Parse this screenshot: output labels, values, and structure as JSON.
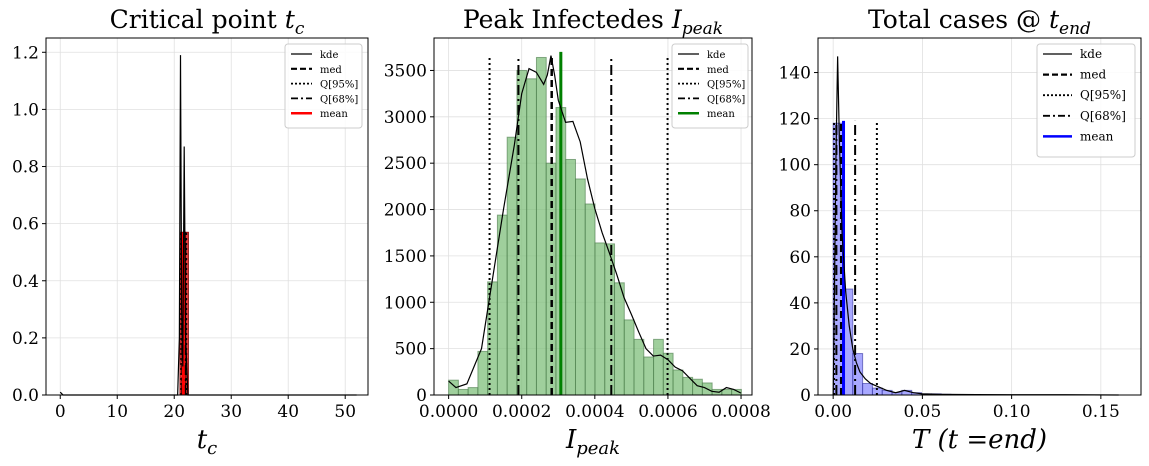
{
  "chart_data": [
    {
      "type": "histogram",
      "title": "Critical point t_c",
      "title_text": "Critical point ",
      "title_math": "t",
      "title_sub": "c",
      "xlabel": "t",
      "xlabel_sub": "c",
      "xlim": [
        -2.5,
        54
      ],
      "ylim": [
        0,
        1.25
      ],
      "xticks": [
        0,
        10,
        20,
        30,
        40,
        50
      ],
      "xtick_labels": [
        "0",
        "10",
        "20",
        "30",
        "40",
        "50"
      ],
      "yticks": [
        0,
        0.2,
        0.4,
        0.6,
        0.8,
        1.0,
        1.2
      ],
      "ytick_labels": [
        "0.0",
        "0.2",
        "0.4",
        "0.6",
        "0.8",
        "1.0",
        "1.2"
      ],
      "grid": true,
      "hist_color": "#e31a1c",
      "hist_edge": "#8b0000",
      "bins": [
        {
          "x0": 21.0,
          "x1": 21.5,
          "y": 0.57
        },
        {
          "x0": 21.5,
          "x1": 22.0,
          "y": 0.57
        },
        {
          "x0": 22.0,
          "x1": 22.5,
          "y": 0.57
        }
      ],
      "kde": [
        [
          0,
          0.01
        ],
        [
          0.5,
          0.0
        ],
        [
          20.6,
          0.0
        ],
        [
          20.9,
          0.2
        ],
        [
          21.1,
          1.19
        ],
        [
          21.3,
          0.3
        ],
        [
          21.5,
          0.1
        ],
        [
          21.75,
          0.87
        ],
        [
          22.0,
          0.2
        ],
        [
          22.4,
          0.0
        ],
        [
          52,
          0.0
        ]
      ],
      "med": 21.5,
      "q95": [
        21.25,
        22.1
      ],
      "q68": [
        21.4,
        21.95
      ],
      "mean": 21.6,
      "vline_top": 0.57,
      "mean_color": "#ff0000",
      "legend": [
        "kde",
        "med",
        "Q[95%]",
        "Q[68%]",
        "mean"
      ],
      "legend_position": "top-right"
    },
    {
      "type": "histogram",
      "title": "Peak Infectedes I_peak",
      "title_text": "Peak Infectedes ",
      "title_math": "I",
      "title_sub": "peak",
      "xlabel": "I",
      "xlabel_sub": "peak",
      "xlim": [
        -4e-05,
        0.00083
      ],
      "ylim": [
        0,
        3850
      ],
      "xticks": [
        0,
        0.0002,
        0.0004,
        0.0006,
        0.0008
      ],
      "xtick_labels": [
        "0.0000",
        "0.0002",
        "0.0004",
        "0.0006",
        "0.0008"
      ],
      "yticks": [
        0,
        500,
        1000,
        1500,
        2000,
        2500,
        3000,
        3500
      ],
      "ytick_labels": [
        "0",
        "500",
        "1000",
        "1500",
        "2000",
        "2500",
        "3000",
        "3500"
      ],
      "grid": true,
      "hist_color": "#7fbf7b",
      "hist_edge": "#4a7a4a",
      "bin_start": 0.0,
      "bin_width": 2.67e-05,
      "bin_values": [
        160,
        60,
        80,
        470,
        1220,
        1940,
        2780,
        3500,
        3410,
        3640,
        2500,
        3100,
        2540,
        2330,
        2060,
        1640,
        1630,
        1210,
        810,
        600,
        410,
        600,
        450,
        270,
        190,
        170,
        130,
        60,
        60,
        60
      ],
      "kde": [
        [
          0.0,
          150
        ],
        [
          2e-05,
          80
        ],
        [
          5e-05,
          120
        ],
        [
          9e-05,
          500
        ],
        [
          0.00012,
          1250
        ],
        [
          0.00015,
          2000
        ],
        [
          0.00018,
          2700
        ],
        [
          0.0002,
          3250
        ],
        [
          0.00022,
          3520
        ],
        [
          0.00024,
          3480
        ],
        [
          0.00026,
          3350
        ],
        [
          0.00027,
          3450
        ],
        [
          0.00028,
          3660
        ],
        [
          0.00029,
          3450
        ],
        [
          0.0003,
          3180
        ],
        [
          0.00032,
          2940
        ],
        [
          0.00034,
          2950
        ],
        [
          0.00036,
          2730
        ],
        [
          0.00038,
          2330
        ],
        [
          0.0004,
          2010
        ],
        [
          0.00042,
          1750
        ],
        [
          0.00044,
          1530
        ],
        [
          0.00046,
          1300
        ],
        [
          0.00048,
          1050
        ],
        [
          0.0005,
          870
        ],
        [
          0.00052,
          680
        ],
        [
          0.00054,
          500
        ],
        [
          0.00056,
          420
        ],
        [
          0.00058,
          430
        ],
        [
          0.0006,
          380
        ],
        [
          0.00062,
          300
        ],
        [
          0.00064,
          260
        ],
        [
          0.00066,
          180
        ],
        [
          0.00068,
          100
        ],
        [
          0.0007,
          80
        ],
        [
          0.00072,
          40
        ],
        [
          0.00074,
          30
        ],
        [
          0.00076,
          80
        ],
        [
          0.00078,
          60
        ],
        [
          0.0008,
          20
        ]
      ],
      "med": 0.000282,
      "q95": [
        0.000112,
        0.000599
      ],
      "q68": [
        0.000191,
        0.000445
      ],
      "mean": 0.000307,
      "vline_top": 3650,
      "mean_top": 3700,
      "mean_color": "#008000",
      "legend": [
        "kde",
        "med",
        "Q[95%]",
        "Q[68%]",
        "mean"
      ],
      "legend_position": "top-right"
    },
    {
      "type": "histogram",
      "title": "Total cases @ t_end",
      "title_text": "Total cases @ ",
      "title_math": "t",
      "title_sub": "end",
      "xlabel": "T (t =end)",
      "xlim": [
        -0.0085,
        0.1725
      ],
      "ylim": [
        0,
        155
      ],
      "xticks": [
        0.0,
        0.05,
        0.1,
        0.15
      ],
      "xtick_labels": [
        "0.00",
        "0.05",
        "0.10",
        "0.15"
      ],
      "yticks": [
        0,
        20,
        40,
        60,
        80,
        100,
        120,
        140
      ],
      "ytick_labels": [
        "0",
        "20",
        "40",
        "60",
        "80",
        "100",
        "120",
        "140"
      ],
      "grid": true,
      "hist_color": "#8b8bff",
      "hist_edge": "#3030a0",
      "bin_start": 0.0,
      "bin_width": 0.0055,
      "bin_values": [
        118,
        46,
        18,
        5,
        3,
        2,
        1,
        2,
        1,
        0.5,
        0.5,
        0.3
      ],
      "kde": [
        [
          0.0,
          0
        ],
        [
          0.0005,
          30
        ],
        [
          0.0015,
          100
        ],
        [
          0.0025,
          147
        ],
        [
          0.0035,
          110
        ],
        [
          0.005,
          70
        ],
        [
          0.007,
          45
        ],
        [
          0.009,
          30
        ],
        [
          0.011,
          20
        ],
        [
          0.013,
          14
        ],
        [
          0.015,
          10
        ],
        [
          0.018,
          7
        ],
        [
          0.021,
          5
        ],
        [
          0.024,
          4
        ],
        [
          0.027,
          3
        ],
        [
          0.03,
          2
        ],
        [
          0.035,
          1
        ],
        [
          0.04,
          2
        ],
        [
          0.045,
          1
        ],
        [
          0.05,
          0.5
        ],
        [
          0.06,
          0.3
        ],
        [
          0.08,
          0.2
        ],
        [
          0.1,
          0.1
        ],
        [
          0.13,
          0.1
        ],
        [
          0.16,
          0
        ]
      ],
      "med": 0.0045,
      "q95": [
        0.0005,
        0.0245
      ],
      "q68": [
        0.0018,
        0.0123
      ],
      "mean": 0.0058,
      "vline_top": 119,
      "mean_color": "#0000ff",
      "legend": [
        "kde",
        "med",
        "Q[95%]",
        "Q[68%]",
        "mean"
      ],
      "legend_position": "top-right"
    }
  ]
}
